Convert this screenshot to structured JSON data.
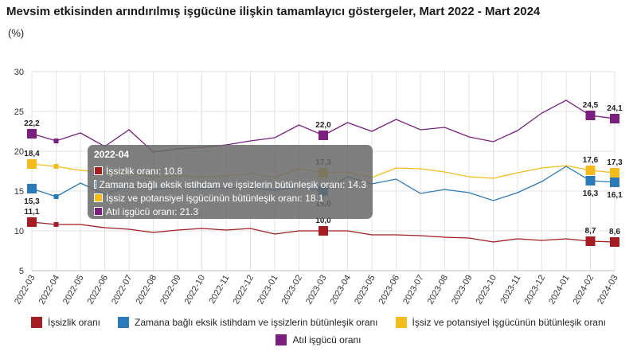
{
  "header": {
    "title": "Mevsim etkisinden arındırılmış işgücüne ilişkin tamamlayıcı göstergeler, Mart 2022 - Mart 2024",
    "unit": "(%)"
  },
  "chart_data": {
    "type": "line",
    "title": "Mevsim etkisinden arındırılmış işgücüne ilişkin tamamlayıcı göstergeler, Mart 2022 - Mart 2024",
    "ylabel": "(%)",
    "ylim": [
      5,
      30
    ],
    "yticks": [
      5,
      10,
      15,
      20,
      25,
      30
    ],
    "grid": true,
    "legend_position": "bottom",
    "categories": [
      "2022-03",
      "2022-04",
      "2022-05",
      "2022-06",
      "2022-07",
      "2022-08",
      "2022-09",
      "2022-10",
      "2022-11",
      "2022-12",
      "2023-01",
      "2023-02",
      "2023-03",
      "2023-04",
      "2023-05",
      "2023-06",
      "2023-07",
      "2023-08",
      "2023-09",
      "2023-10",
      "2023-11",
      "2023-12",
      "2024-01",
      "2024-02",
      "2024-03"
    ],
    "series": [
      {
        "name": "İşsizlik oranı",
        "color": "#a31d22",
        "values": [
          11.1,
          10.8,
          10.8,
          10.4,
          10.2,
          9.8,
          10.1,
          10.3,
          10.1,
          10.3,
          9.6,
          10.0,
          10.0,
          10.0,
          9.5,
          9.5,
          9.4,
          9.2,
          9.1,
          8.6,
          9.0,
          8.8,
          9.0,
          8.7,
          8.6
        ]
      },
      {
        "name": "Zamana bağlı eksik istihdam ve işsizlerin bütünleşik oranı",
        "color": "#2a7ab8",
        "values": [
          15.3,
          14.3,
          16.0,
          14.6,
          15.7,
          15.2,
          15.5,
          15.3,
          15.4,
          15.4,
          15.1,
          15.5,
          15.0,
          16.8,
          15.9,
          16.5,
          14.7,
          15.2,
          14.8,
          13.8,
          14.8,
          16.2,
          18.1,
          16.3,
          16.1
        ]
      },
      {
        "name": "İşsiz ve potansiyel işgücünün bütünleşik oranı",
        "color": "#f5bb1d",
        "values": [
          18.4,
          18.1,
          17.6,
          17.3,
          17.2,
          16.8,
          16.9,
          16.8,
          16.9,
          17.2,
          16.7,
          17.8,
          17.3,
          17.4,
          16.7,
          17.9,
          17.8,
          17.4,
          16.8,
          16.6,
          17.3,
          17.9,
          18.2,
          17.6,
          17.3
        ]
      },
      {
        "name": "Atıl işgücü oranı",
        "color": "#7a1f7e",
        "values": [
          22.2,
          21.3,
          22.3,
          20.6,
          22.7,
          19.9,
          20.3,
          20.5,
          20.8,
          21.3,
          21.7,
          23.3,
          22.0,
          23.6,
          22.5,
          24.0,
          22.7,
          23.0,
          21.8,
          21.2,
          22.6,
          24.8,
          26.4,
          24.5,
          24.1
        ]
      }
    ],
    "markers": [
      0,
      12,
      23,
      24
    ],
    "data_labels": [
      {
        "series": 0,
        "index": 0,
        "text": "11,1"
      },
      {
        "series": 0,
        "index": 12,
        "text": "10,0"
      },
      {
        "series": 0,
        "index": 23,
        "text": "8,7"
      },
      {
        "series": 0,
        "index": 24,
        "text": "8,6"
      },
      {
        "series": 1,
        "index": 0,
        "text": "15,3"
      },
      {
        "series": 1,
        "index": 12,
        "text": "15,0"
      },
      {
        "series": 1,
        "index": 23,
        "text": "16,3"
      },
      {
        "series": 1,
        "index": 24,
        "text": "16,1"
      },
      {
        "series": 2,
        "index": 0,
        "text": "18,4"
      },
      {
        "series": 2,
        "index": 12,
        "text": "17,3"
      },
      {
        "series": 2,
        "index": 23,
        "text": "17,6"
      },
      {
        "series": 2,
        "index": 24,
        "text": "17,3"
      },
      {
        "series": 3,
        "index": 0,
        "text": "22,2"
      },
      {
        "series": 3,
        "index": 12,
        "text": "22,0"
      },
      {
        "series": 3,
        "index": 23,
        "text": "24,5"
      },
      {
        "series": 3,
        "index": 24,
        "text": "24,1"
      }
    ],
    "tooltip": {
      "title": "2022-04",
      "lines": [
        {
          "label": "İşsizlik oranı: 10.8",
          "color": "#a31d22"
        },
        {
          "label": "Zamana bağlı eksik istihdam ve işsizlerin bütünleşik oranı: 14.3",
          "color": "#2a7ab8"
        },
        {
          "label": "İşsiz ve potansiyel işgücünün bütünleşik oranı: 18.1",
          "color": "#f5bb1d"
        },
        {
          "label": "Atıl işgücü oranı: 21.3",
          "color": "#7a1f7e"
        }
      ]
    }
  }
}
